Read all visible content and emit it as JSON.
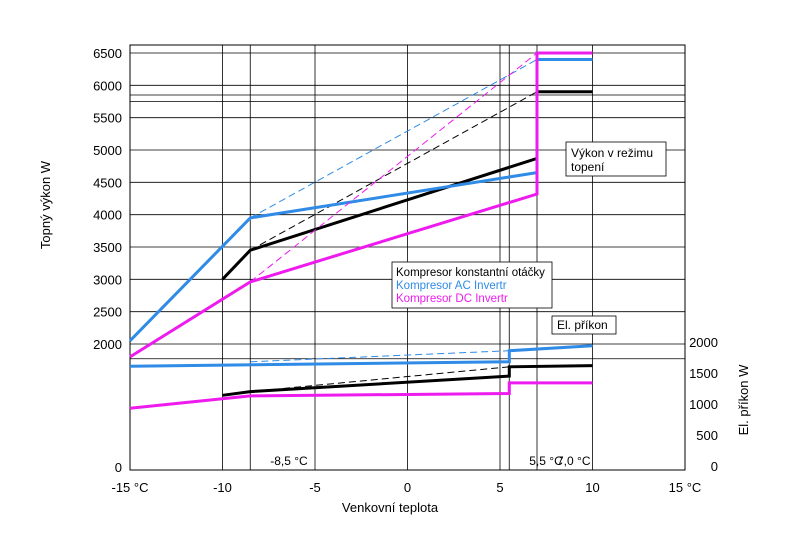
{
  "chart_data": {
    "type": "line",
    "xlabel": "Venkovní teplota",
    "ylabel_left": "Topný výkon W",
    "ylabel_right": "El. příkon W",
    "x_ticks": [
      "-15 °C",
      "-10",
      "-5",
      "0",
      "5",
      "10",
      "15 °C"
    ],
    "x_tick_values": [
      -15,
      -10,
      -5,
      0,
      5,
      10,
      15
    ],
    "xlim": [
      -15,
      15
    ],
    "left_ticks": [
      "0",
      "2000",
      "2500",
      "3000",
      "3500",
      "4000",
      "4500",
      "5000",
      "5500",
      "6000",
      "6500"
    ],
    "left_tick_values": [
      0,
      2000,
      2500,
      3000,
      3500,
      4000,
      4500,
      5000,
      5500,
      6000,
      6500
    ],
    "right_ticks": [
      "0",
      "500",
      "1000",
      "1500",
      "2000"
    ],
    "right_tick_values": [
      0,
      500,
      1000,
      1500,
      2000
    ],
    "vertical_markers": [
      {
        "x": -8.5,
        "label": "-8,5 °C"
      },
      {
        "x": 5.5,
        "label": "5,5 °C"
      },
      {
        "x": 7.0,
        "label": "7,0 °C"
      }
    ],
    "boxes": {
      "heating": [
        "Výkon v režimu",
        "topení"
      ],
      "power": "El. příkon"
    },
    "legend": [
      {
        "label": "Kompresor konstantní otáčky",
        "color": "#000000"
      },
      {
        "label": "Kompresor AC Invertr",
        "color": "#2f8be6"
      },
      {
        "label": "Kompresor DC Invertr",
        "color": "#ee1bee"
      }
    ],
    "series": [
      {
        "group": "heating",
        "style": "solid",
        "color": "#000000",
        "x": [
          -10,
          -8.5,
          7,
          7,
          10
        ],
        "y": [
          3000,
          3450,
          4870,
          5900,
          5900
        ]
      },
      {
        "group": "heating",
        "style": "dashed",
        "color": "#000000",
        "x": [
          -8.5,
          7
        ],
        "y": [
          3450,
          5900
        ]
      },
      {
        "group": "heating",
        "style": "solid",
        "color": "#2f8be6",
        "x": [
          -15,
          -8.5,
          7,
          7,
          10
        ],
        "y": [
          2050,
          3950,
          4650,
          6400,
          6400
        ]
      },
      {
        "group": "heating",
        "style": "dashed",
        "color": "#2f8be6",
        "x": [
          -8.5,
          7
        ],
        "y": [
          3950,
          6400
        ]
      },
      {
        "group": "heating",
        "style": "solid",
        "color": "#ee1bee",
        "x": [
          -15,
          -8.5,
          7,
          7,
          10
        ],
        "y": [
          1800,
          2960,
          4320,
          6500,
          6500
        ]
      },
      {
        "group": "heating",
        "style": "dashed",
        "color": "#ee1bee",
        "x": [
          -8.5,
          7
        ],
        "y": [
          2960,
          6500
        ]
      },
      {
        "group": "power",
        "style": "solid",
        "color": "#000000",
        "x": [
          -10,
          -8.5,
          5.5,
          5.5,
          10
        ],
        "y": [
          1140,
          1200,
          1450,
          1600,
          1620
        ]
      },
      {
        "group": "power",
        "style": "dashed",
        "color": "#000000",
        "x": [
          -8.5,
          5.5
        ],
        "y": [
          1200,
          1600
        ]
      },
      {
        "group": "power",
        "style": "solid",
        "color": "#2f8be6",
        "x": [
          -15,
          5.5,
          5.5,
          10
        ],
        "y": [
          1610,
          1680,
          1860,
          1940
        ]
      },
      {
        "group": "power",
        "style": "dashed",
        "color": "#2f8be6",
        "x": [
          -8.5,
          5.5
        ],
        "y": [
          1680,
          1860
        ]
      },
      {
        "group": "power",
        "style": "solid",
        "color": "#ee1bee",
        "x": [
          -15,
          -8.5,
          5.5,
          5.5,
          10
        ],
        "y": [
          930,
          1130,
          1170,
          1340,
          1340
        ]
      }
    ]
  }
}
